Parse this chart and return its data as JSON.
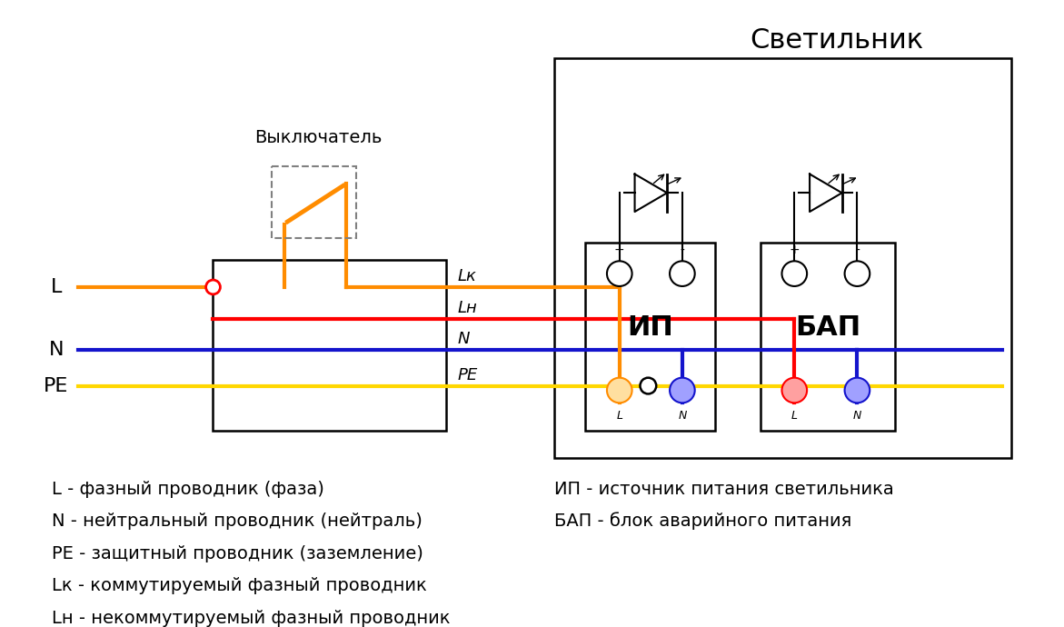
{
  "title": "Светильник",
  "switch_label": "Выключатель",
  "legend_left": [
    "L - фазный проводник (фаза)",
    "N - нейтральный проводник (нейтраль)",
    "PE - защитный проводник (заземление)",
    "Lк - коммутируемый фазный проводник",
    "Lн - некоммутируемый фазный проводник"
  ],
  "legend_right": [
    "ИП - источник питания светильника",
    "БАП - блок аварийного питания"
  ],
  "orange": "#FF8C00",
  "red": "#FF0000",
  "blue": "#1414CC",
  "yellow": "#FFD700",
  "black": "#000000",
  "white": "#FFFFFF",
  "gray": "#888888"
}
